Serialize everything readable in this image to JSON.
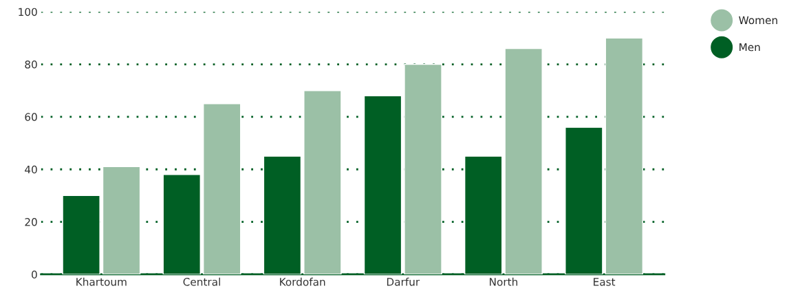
{
  "chart_data": {
    "type": "bar",
    "categories": [
      "Khartoum",
      "Central",
      "Kordofan",
      "Darfur",
      "North",
      "East"
    ],
    "series": [
      {
        "name": "Men",
        "color": "#005f24",
        "values": [
          30,
          38,
          45,
          68,
          45,
          56
        ]
      },
      {
        "name": "Women",
        "color": "#9bc0a6",
        "values": [
          41,
          65,
          70,
          80,
          86,
          90
        ]
      }
    ],
    "ylim": [
      0,
      100
    ],
    "yticks": [
      0,
      20,
      40,
      60,
      80,
      100
    ],
    "grid": "y",
    "legend": "top right"
  }
}
